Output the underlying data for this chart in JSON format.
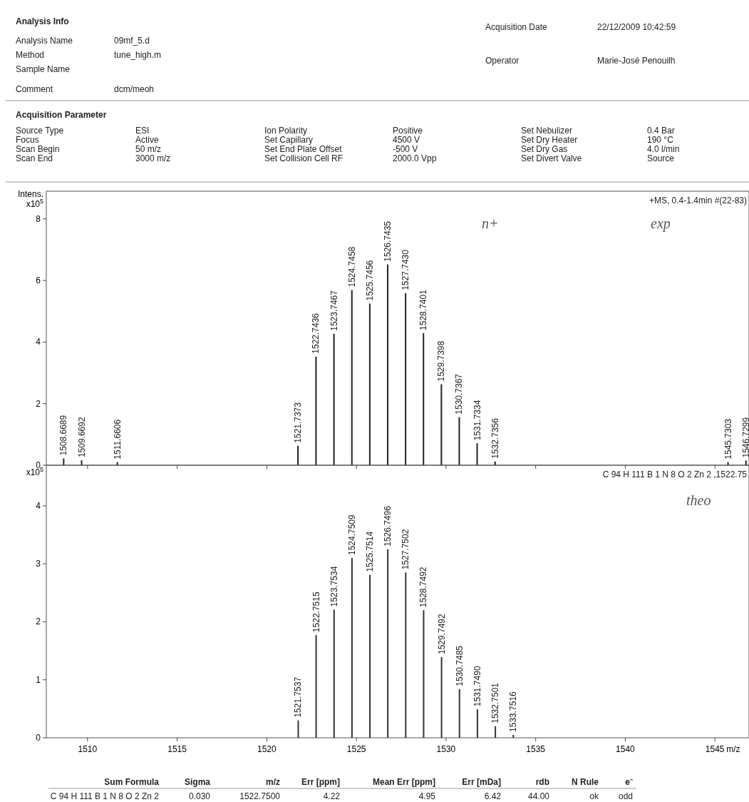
{
  "chart_data": [
    {
      "type": "bar",
      "ylabel": "Intens. x10$^{5}$",
      "x": [
        1508.6689,
        1509.6692,
        1511.6606,
        1521.7373,
        1522.7436,
        1523.7467,
        1524.7458,
        1525.7456,
        1526.7435,
        1527.743,
        1528.7401,
        1529.7398,
        1530.7367,
        1531.7334,
        1532.7356,
        1545.7303,
        1546.7299
      ],
      "values": [
        0.22,
        0.16,
        0.1,
        0.63,
        3.53,
        4.27,
        5.69,
        5.25,
        6.52,
        5.59,
        4.29,
        2.63,
        1.56,
        0.71,
        0.12,
        0.1,
        0.15
      ],
      "color": "#222222",
      "xlim": [
        1507.7,
        1546.9
      ],
      "xticks": [
        1510,
        1515,
        1520,
        1525,
        1530,
        1535,
        1540,
        1545
      ],
      "ylim": [
        0,
        8.9
      ],
      "yticks": [
        0,
        2,
        4,
        6,
        8
      ],
      "tick_labels": "y",
      "annotations": [
        "Analysis Info",
        "Analysis Name",
        "09mf_5.d",
        "Method",
        "tune_high.m",
        "Sample Name",
        "Comment",
        "dcm/meoh",
        "Acquisition Date",
        "22/12/2009 10:42:59",
        "Operator",
        "Marie-José Penouilh",
        "Acquisition Parameter",
        "Source Type",
        "ESI",
        "Focus",
        "Active",
        "Scan Begin",
        "50 m/z",
        "Scan End",
        "3000 m/z",
        "Ion Polarity",
        "Positive",
        "Set Capillary",
        "4500 V",
        "Set End Plate Offset",
        "-500 V",
        "Set Collision Cell RF",
        "2000.0 Vpp",
        "Set Nebulizer",
        "0.4 Bar",
        "Set Dry Heater",
        "190 °C",
        "Set Dry Gas",
        "4.0 l/min",
        "Set Divert Valve",
        "Source",
        "+MS, 0.4-1.4min #(22-83)",
        "n+",
        "exp",
        {
          "text": "1508.6689",
          "x": 1508.6689,
          "y": 0.22
        },
        {
          "text": "1509.6692",
          "x": 1509.6692,
          "y": 0.16
        },
        {
          "text": "1511.6606",
          "x": 1511.6606,
          "y": 0.1
        },
        {
          "text": "1521.7373",
          "x": 1521.7373,
          "y": 0.63
        },
        {
          "text": "1522.7436",
          "x": 1522.7436,
          "y": 3.53
        },
        {
          "text": "1523.7467",
          "x": 1523.7467,
          "y": 4.27
        },
        {
          "text": "1524.7458",
          "x": 1524.7458,
          "y": 5.69
        },
        {
          "text": "1525.7456",
          "x": 1525.7456,
          "y": 5.25
        },
        {
          "text": "1526.7435",
          "x": 1526.7435,
          "y": 6.52
        },
        {
          "text": "1527.7430",
          "x": 1527.743,
          "y": 5.59
        },
        {
          "text": "1528.7401",
          "x": 1528.7401,
          "y": 4.29
        },
        {
          "text": "1529.7398",
          "x": 1529.7398,
          "y": 2.63
        },
        {
          "text": "1530.7367",
          "x": 1530.7367,
          "y": 1.56
        },
        {
          "text": "1531.7334",
          "x": 1531.7334,
          "y": 0.71
        },
        {
          "text": "1532.7356",
          "x": 1532.7356,
          "y": 0.12
        },
        {
          "text": "1545.7303",
          "x": 1545.7303,
          "y": 0.1
        },
        {
          "text": "1546.7299",
          "x": 1546.7299,
          "y": 0.15
        }
      ]
    },
    {
      "type": "bar",
      "ylabel": "x10$^{5}$",
      "xlabel": "m/z",
      "x": [
        1521.7537,
        1522.7515,
        1523.7534,
        1524.7509,
        1525.7514,
        1526.7496,
        1527.7502,
        1528.7492,
        1529.7492,
        1530.7485,
        1531.749,
        1532.7501,
        1533.7516
      ],
      "values": [
        0.3,
        1.77,
        2.21,
        3.1,
        2.81,
        3.25,
        2.85,
        2.2,
        1.39,
        0.84,
        0.49,
        0.2,
        0.05
      ],
      "color": "#333333",
      "xlim": [
        1507.7,
        1546.9
      ],
      "xticks": [
        1510,
        1515,
        1520,
        1525,
        1530,
        1535,
        1540,
        1545
      ],
      "ylim": [
        0,
        4.7
      ],
      "yticks": [
        0,
        1,
        2,
        3,
        4
      ],
      "annotations": [
        "C 94 H 111 B 1 N 8 O 2 Zn 2 ,1522.75",
        "theo",
        "Sum Formula",
        "Sigma",
        "m/z",
        "Err [ppm]",
        "Mean Err [ppm]",
        "Err [mDa]",
        "rdb",
        "N Rule",
        "e⁻",
        "C 94 H 111 B 1 N 8 O 2 Zn 2",
        "0.030",
        "1522.7500",
        "4.22",
        "4.95",
        "6.42",
        "44.00",
        "ok",
        "odd",
        {
          "text": "1521.7537",
          "x": 1521.7537,
          "y": 0.3
        },
        {
          "text": "1522.7515",
          "x": 1522.7515,
          "y": 1.77
        },
        {
          "text": "1523.7534",
          "x": 1523.7534,
          "y": 2.21
        },
        {
          "text": "1524.7509",
          "x": 1524.7509,
          "y": 3.1
        },
        {
          "text": "1525.7514",
          "x": 1525.7514,
          "y": 2.81
        },
        {
          "text": "1526.7496",
          "x": 1526.7496,
          "y": 3.25
        },
        {
          "text": "1527.7502",
          "x": 1527.7502,
          "y": 2.85
        },
        {
          "text": "1528.7492",
          "x": 1528.7492,
          "y": 2.2
        },
        {
          "text": "1529.7492",
          "x": 1529.7492,
          "y": 1.39
        },
        {
          "text": "1530.7485",
          "x": 1530.7485,
          "y": 0.84
        },
        {
          "text": "1531.7490",
          "x": 1531.749,
          "y": 0.49
        },
        {
          "text": "1532.7501",
          "x": 1532.7501,
          "y": 0.2
        },
        {
          "text": "1533.7516",
          "x": 1533.7516,
          "y": 0.05
        }
      ]
    }
  ]
}
